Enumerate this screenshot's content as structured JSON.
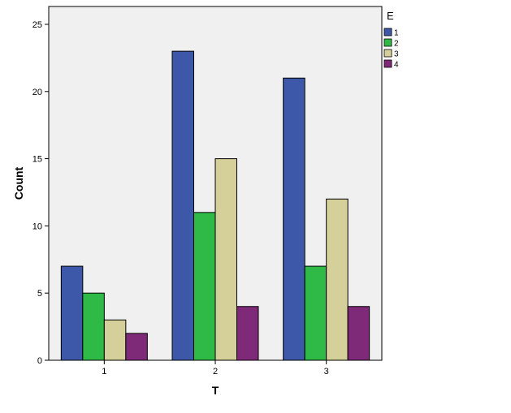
{
  "chart_data": {
    "type": "bar",
    "title": "",
    "xlabel": "T",
    "ylabel": "Count",
    "categories": [
      "1",
      "2",
      "3"
    ],
    "ylim": [
      0,
      25
    ],
    "yticks": [
      0,
      5,
      10,
      15,
      20,
      25
    ],
    "grid": false,
    "legend": {
      "title": "E",
      "placement": "top-right",
      "entries": [
        "1",
        "2",
        "3",
        "4"
      ]
    },
    "series": [
      {
        "name": "1",
        "color": "#3d58a9",
        "values": [
          7,
          23,
          21
        ]
      },
      {
        "name": "2",
        "color": "#2fba47",
        "values": [
          5,
          11,
          7
        ]
      },
      {
        "name": "3",
        "color": "#d5cf99",
        "values": [
          3,
          15,
          12
        ]
      },
      {
        "name": "4",
        "color": "#7f2a78",
        "values": [
          2,
          4,
          4
        ]
      }
    ],
    "plot_background": "#f0f0f0"
  }
}
